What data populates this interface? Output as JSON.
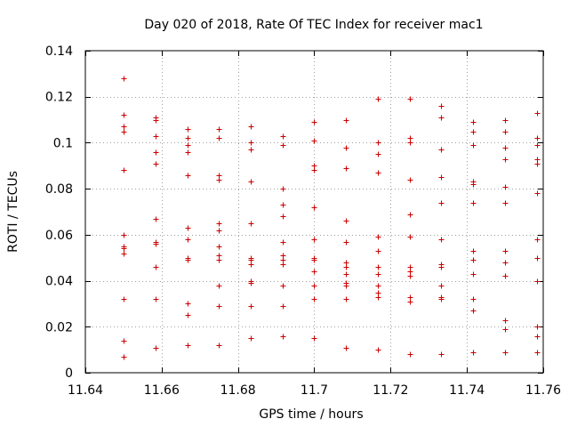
{
  "chart_data": {
    "type": "scatter",
    "title": "Day 020 of 2018, Rate Of TEC Index for receiver mac1",
    "xlabel": "GPS time / hours",
    "ylabel": "ROTI / TECUs",
    "xlim": [
      11.64,
      11.76
    ],
    "ylim": [
      0,
      0.14
    ],
    "grid": true,
    "marker": "+",
    "color": "#cc0000",
    "x_tick_labels": [
      "11.64",
      "11.66",
      "11.68",
      "11.7",
      "11.72",
      "11.74",
      "11.76"
    ],
    "y_tick_labels": [
      "0",
      "0.02",
      "0.04",
      "0.06",
      "0.08",
      "0.1",
      "0.12",
      "0.14"
    ],
    "x_ticks": [
      11.64,
      11.66,
      11.68,
      11.7,
      11.72,
      11.74,
      11.76
    ],
    "y_ticks": [
      0,
      0.02,
      0.04,
      0.06,
      0.08,
      0.1,
      0.12,
      0.14
    ],
    "series": [
      {
        "name": "mac1",
        "points": [
          [
            11.65,
            0.128
          ],
          [
            11.65,
            0.112
          ],
          [
            11.65,
            0.107
          ],
          [
            11.65,
            0.105
          ],
          [
            11.65,
            0.088
          ],
          [
            11.65,
            0.06
          ],
          [
            11.65,
            0.055
          ],
          [
            11.65,
            0.054
          ],
          [
            11.65,
            0.052
          ],
          [
            11.65,
            0.032
          ],
          [
            11.65,
            0.014
          ],
          [
            11.65,
            0.007
          ],
          [
            11.6583,
            0.111
          ],
          [
            11.6583,
            0.11
          ],
          [
            11.6583,
            0.103
          ],
          [
            11.6583,
            0.096
          ],
          [
            11.6583,
            0.091
          ],
          [
            11.6583,
            0.067
          ],
          [
            11.6583,
            0.057
          ],
          [
            11.6583,
            0.056
          ],
          [
            11.6583,
            0.046
          ],
          [
            11.6583,
            0.032
          ],
          [
            11.6583,
            0.011
          ],
          [
            11.6583,
            0.011
          ],
          [
            11.6667,
            0.106
          ],
          [
            11.6667,
            0.102
          ],
          [
            11.6667,
            0.099
          ],
          [
            11.6667,
            0.096
          ],
          [
            11.6667,
            0.086
          ],
          [
            11.6667,
            0.063
          ],
          [
            11.6667,
            0.058
          ],
          [
            11.6667,
            0.05
          ],
          [
            11.6667,
            0.049
          ],
          [
            11.6667,
            0.03
          ],
          [
            11.6667,
            0.025
          ],
          [
            11.6667,
            0.012
          ],
          [
            11.675,
            0.106
          ],
          [
            11.675,
            0.102
          ],
          [
            11.675,
            0.086
          ],
          [
            11.675,
            0.084
          ],
          [
            11.675,
            0.065
          ],
          [
            11.675,
            0.062
          ],
          [
            11.675,
            0.055
          ],
          [
            11.675,
            0.051
          ],
          [
            11.675,
            0.049
          ],
          [
            11.675,
            0.038
          ],
          [
            11.675,
            0.029
          ],
          [
            11.675,
            0.012
          ],
          [
            11.6833,
            0.107
          ],
          [
            11.6833,
            0.1
          ],
          [
            11.6833,
            0.097
          ],
          [
            11.6833,
            0.083
          ],
          [
            11.6833,
            0.065
          ],
          [
            11.6833,
            0.05
          ],
          [
            11.6833,
            0.049
          ],
          [
            11.6833,
            0.047
          ],
          [
            11.6833,
            0.04
          ],
          [
            11.6833,
            0.039
          ],
          [
            11.6833,
            0.029
          ],
          [
            11.6833,
            0.015
          ],
          [
            11.6917,
            0.103
          ],
          [
            11.6917,
            0.099
          ],
          [
            11.6917,
            0.08
          ],
          [
            11.6917,
            0.073
          ],
          [
            11.6917,
            0.068
          ],
          [
            11.6917,
            0.057
          ],
          [
            11.6917,
            0.051
          ],
          [
            11.6917,
            0.049
          ],
          [
            11.6917,
            0.047
          ],
          [
            11.6917,
            0.038
          ],
          [
            11.6917,
            0.029
          ],
          [
            11.6917,
            0.016
          ],
          [
            11.7,
            0.109
          ],
          [
            11.7,
            0.101
          ],
          [
            11.7,
            0.09
          ],
          [
            11.7,
            0.088
          ],
          [
            11.7,
            0.072
          ],
          [
            11.7,
            0.058
          ],
          [
            11.7,
            0.05
          ],
          [
            11.7,
            0.049
          ],
          [
            11.7,
            0.044
          ],
          [
            11.7,
            0.038
          ],
          [
            11.7,
            0.032
          ],
          [
            11.7,
            0.015
          ],
          [
            11.7083,
            0.11
          ],
          [
            11.7083,
            0.098
          ],
          [
            11.7083,
            0.089
          ],
          [
            11.7083,
            0.066
          ],
          [
            11.7083,
            0.057
          ],
          [
            11.7083,
            0.048
          ],
          [
            11.7083,
            0.046
          ],
          [
            11.7083,
            0.043
          ],
          [
            11.7083,
            0.039
          ],
          [
            11.7083,
            0.038
          ],
          [
            11.7083,
            0.032
          ],
          [
            11.7083,
            0.011
          ],
          [
            11.7167,
            0.119
          ],
          [
            11.7167,
            0.1
          ],
          [
            11.7167,
            0.095
          ],
          [
            11.7167,
            0.087
          ],
          [
            11.7167,
            0.059
          ],
          [
            11.7167,
            0.053
          ],
          [
            11.7167,
            0.046
          ],
          [
            11.7167,
            0.043
          ],
          [
            11.7167,
            0.038
          ],
          [
            11.7167,
            0.035
          ],
          [
            11.7167,
            0.033
          ],
          [
            11.7167,
            0.01
          ],
          [
            11.725,
            0.119
          ],
          [
            11.725,
            0.102
          ],
          [
            11.725,
            0.1
          ],
          [
            11.725,
            0.084
          ],
          [
            11.725,
            0.069
          ],
          [
            11.725,
            0.059
          ],
          [
            11.725,
            0.046
          ],
          [
            11.725,
            0.044
          ],
          [
            11.725,
            0.042
          ],
          [
            11.725,
            0.033
          ],
          [
            11.725,
            0.031
          ],
          [
            11.725,
            0.008
          ],
          [
            11.7333,
            0.116
          ],
          [
            11.7333,
            0.111
          ],
          [
            11.7333,
            0.097
          ],
          [
            11.7333,
            0.085
          ],
          [
            11.7333,
            0.074
          ],
          [
            11.7333,
            0.058
          ],
          [
            11.7333,
            0.047
          ],
          [
            11.7333,
            0.046
          ],
          [
            11.7333,
            0.038
          ],
          [
            11.7333,
            0.033
          ],
          [
            11.7333,
            0.032
          ],
          [
            11.7333,
            0.008
          ],
          [
            11.7417,
            0.109
          ],
          [
            11.7417,
            0.105
          ],
          [
            11.7417,
            0.099
          ],
          [
            11.7417,
            0.083
          ],
          [
            11.7417,
            0.082
          ],
          [
            11.7417,
            0.074
          ],
          [
            11.7417,
            0.053
          ],
          [
            11.7417,
            0.049
          ],
          [
            11.7417,
            0.043
          ],
          [
            11.7417,
            0.032
          ],
          [
            11.7417,
            0.027
          ],
          [
            11.7417,
            0.009
          ],
          [
            11.75,
            0.11
          ],
          [
            11.75,
            0.105
          ],
          [
            11.75,
            0.098
          ],
          [
            11.75,
            0.093
          ],
          [
            11.75,
            0.081
          ],
          [
            11.75,
            0.074
          ],
          [
            11.75,
            0.053
          ],
          [
            11.75,
            0.048
          ],
          [
            11.75,
            0.042
          ],
          [
            11.75,
            0.023
          ],
          [
            11.75,
            0.019
          ],
          [
            11.75,
            0.009
          ],
          [
            11.7583,
            0.113
          ],
          [
            11.7583,
            0.102
          ],
          [
            11.7583,
            0.099
          ],
          [
            11.7583,
            0.093
          ],
          [
            11.7583,
            0.091
          ],
          [
            11.7583,
            0.078
          ],
          [
            11.7583,
            0.058
          ],
          [
            11.7583,
            0.05
          ],
          [
            11.7583,
            0.04
          ],
          [
            11.7583,
            0.02
          ],
          [
            11.7583,
            0.016
          ],
          [
            11.7583,
            0.009
          ]
        ]
      }
    ]
  }
}
